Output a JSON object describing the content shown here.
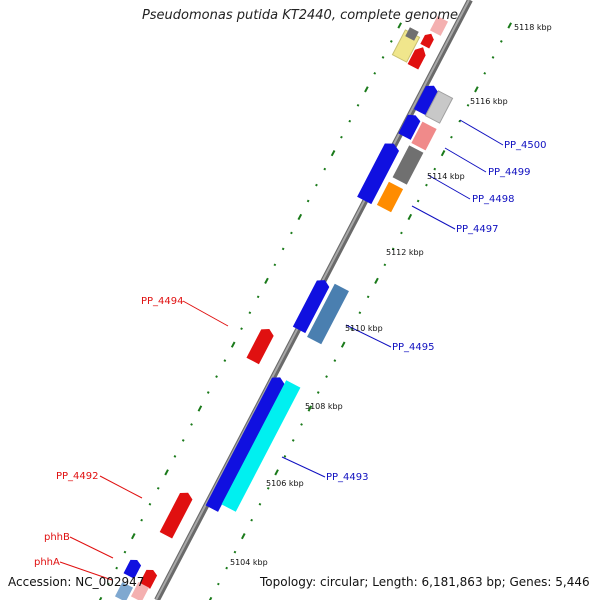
{
  "title": "Pseudomonas putida KT2440, complete genome",
  "footer": {
    "accession": "Accession: NC_002947",
    "topology": "Topology: circular; Length: 6,181,863 bp; Genes: 5,446"
  },
  "colors": {
    "backbone": "#8a8a8a",
    "tick": "#1a7a1a",
    "forward_gene_label": "#1010c0",
    "reverse_gene_label": "#e01010"
  },
  "scale_labels": [
    "5118 kbp",
    "5116 kbp",
    "5114 kbp",
    "5112 kbp",
    "5110 kbp",
    "5108 kbp",
    "5106 kbp",
    "5104 kbp"
  ],
  "gene_labels": [
    {
      "text": "PP_4500",
      "strand": "forward"
    },
    {
      "text": "PP_4499",
      "strand": "forward"
    },
    {
      "text": "PP_4498",
      "strand": "forward"
    },
    {
      "text": "PP_4497",
      "strand": "forward"
    },
    {
      "text": "PP_4494",
      "strand": "reverse"
    },
    {
      "text": "PP_4495",
      "strand": "forward"
    },
    {
      "text": "PP_4493",
      "strand": "forward"
    },
    {
      "text": "PP_4492",
      "strand": "reverse"
    },
    {
      "text": "phhB",
      "strand": "reverse"
    },
    {
      "text": "phhA",
      "strand": "reverse"
    }
  ]
}
